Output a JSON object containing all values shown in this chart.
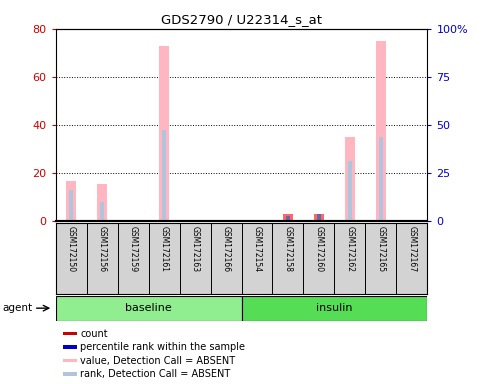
{
  "title": "GDS2790 / U22314_s_at",
  "samples": [
    "GSM172150",
    "GSM172156",
    "GSM172159",
    "GSM172161",
    "GSM172163",
    "GSM172166",
    "GSM172154",
    "GSM172158",
    "GSM172160",
    "GSM172162",
    "GSM172165",
    "GSM172167"
  ],
  "left_ylim": [
    0,
    80
  ],
  "right_ylim": [
    0,
    100
  ],
  "left_yticks": [
    0,
    20,
    40,
    60,
    80
  ],
  "right_yticks": [
    0,
    25,
    50,
    75,
    100
  ],
  "right_yticklabels": [
    "0",
    "25",
    "50",
    "75",
    "100%"
  ],
  "bar_color_absent": "#FFB6C1",
  "rank_color_absent": "#B0C4DE",
  "tick_color_left": "#CC0000",
  "tick_color_right": "#0000CC",
  "value_absent": [
    16.5,
    15.5,
    0,
    73,
    0,
    0,
    0,
    0,
    0,
    35,
    75,
    0
  ],
  "rank_absent_pct": [
    16.25,
    10.0,
    0,
    47.5,
    0,
    0,
    0,
    0,
    0,
    31.25,
    43.75,
    0
  ],
  "value_present": [
    0,
    0,
    0,
    0,
    0,
    0,
    0,
    3,
    3,
    0,
    0,
    0
  ],
  "rank_present_pct": [
    0,
    0,
    0,
    0,
    0,
    0,
    0,
    2.5,
    3.75,
    0,
    0,
    0
  ],
  "groups": [
    {
      "label": "baseline",
      "start": 0,
      "end": 5,
      "color": "#90EE90"
    },
    {
      "label": "insulin",
      "start": 6,
      "end": 11,
      "color": "#55DD55"
    }
  ],
  "legend_items": [
    {
      "color": "#CC0000",
      "label": "count"
    },
    {
      "color": "#0000CC",
      "label": "percentile rank within the sample"
    },
    {
      "color": "#FFB6C1",
      "label": "value, Detection Call = ABSENT"
    },
    {
      "color": "#B0C4DE",
      "label": "rank, Detection Call = ABSENT"
    }
  ]
}
